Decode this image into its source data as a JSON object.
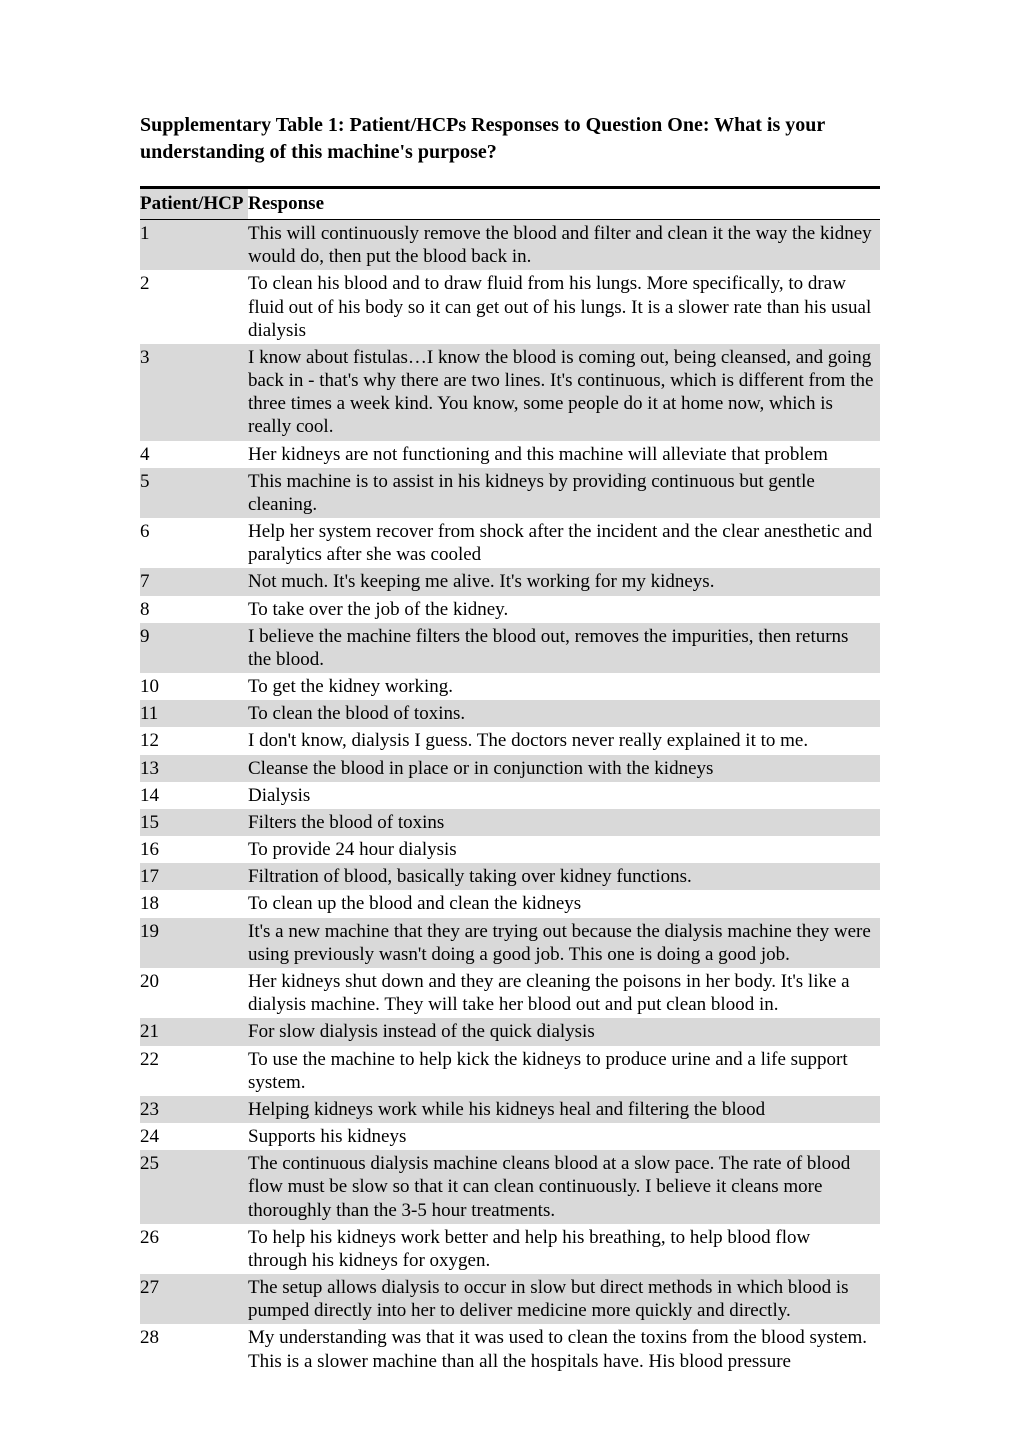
{
  "title": "Supplementary Table 1: Patient/HCPs Responses to Question One: What is your understanding of this machine's purpose?",
  "columns": {
    "id": "Patient/HCP",
    "response": "Response"
  },
  "rows": [
    {
      "id": "1",
      "response": "This will continuously remove the blood and filter and clean it the way the kidney would do, then put the blood back in."
    },
    {
      "id": "2",
      "response": "To clean his blood and to draw fluid from his lungs. More specifically, to draw fluid out of his body so it can get out of his lungs. It is a slower rate than his usual dialysis"
    },
    {
      "id": "3",
      "response": "I know about fistulas…I know the blood is coming out, being cleansed, and going back in - that's why there are two lines. It's continuous, which is different from the three times a week kind. You know, some people do it at home now, which is really cool."
    },
    {
      "id": "4",
      "response": "Her kidneys are not functioning and this machine will alleviate that problem"
    },
    {
      "id": "5",
      "response": "This machine is to assist in his kidneys by providing continuous but gentle cleaning."
    },
    {
      "id": "6",
      "response": "Help her system recover from shock after the incident and the clear anesthetic and paralytics after she was cooled"
    },
    {
      "id": "7",
      "response": "Not much. It's keeping me alive. It's working for my kidneys."
    },
    {
      "id": "8",
      "response": "To take over the job of the kidney."
    },
    {
      "id": "9",
      "response": "I believe the machine filters the blood out, removes the impurities, then returns the blood."
    },
    {
      "id": "10",
      "response": "To get the kidney working."
    },
    {
      "id": "11",
      "response": "To clean the blood of toxins."
    },
    {
      "id": "12",
      "response": "I don't know, dialysis I guess. The doctors never really explained it to me."
    },
    {
      "id": "13",
      "response": "Cleanse the blood in place or in conjunction with the kidneys"
    },
    {
      "id": "14",
      "response": "Dialysis"
    },
    {
      "id": "15",
      "response": "Filters the blood of toxins"
    },
    {
      "id": "16",
      "response": "To provide 24 hour dialysis"
    },
    {
      "id": "17",
      "response": "Filtration of blood, basically taking over kidney functions."
    },
    {
      "id": "18",
      "response": "To clean up the blood and clean the kidneys"
    },
    {
      "id": "19",
      "response": "It's a new machine that they are trying out because the dialysis machine they were using previously wasn't doing a good job. This one is doing a good job."
    },
    {
      "id": "20",
      "response": "Her kidneys shut down and they are cleaning the poisons in her body. It's like a dialysis machine. They will take her blood out and put clean blood in."
    },
    {
      "id": "21",
      "response": "For slow dialysis instead of the quick dialysis"
    },
    {
      "id": "22",
      "response": "To use the machine to help kick the kidneys to produce urine and a life support system."
    },
    {
      "id": "23",
      "response": "Helping kidneys work while his kidneys heal and filtering the blood"
    },
    {
      "id": "24",
      "response": "Supports his kidneys"
    },
    {
      "id": "25",
      "response": "The continuous dialysis machine cleans blood at a slow pace. The rate of blood flow must be slow so that it can clean continuously. I believe it cleans more thoroughly than the 3-5 hour treatments."
    },
    {
      "id": "26",
      "response": "To help his kidneys work better and help his breathing, to help blood flow through his kidneys for oxygen."
    },
    {
      "id": "27",
      "response": "The setup allows dialysis to occur in slow but direct methods in which blood is pumped directly into her to deliver medicine more quickly and directly."
    },
    {
      "id": "28",
      "response": "My understanding was that it was used to clean the toxins from the blood system. This is a slower machine than all the hospitals have. His blood pressure"
    }
  ],
  "colors": {
    "shade": "#d9d9d9",
    "background": "#ffffff",
    "text": "#000000"
  },
  "font": {
    "family": "Times New Roman",
    "title_size_pt": 15,
    "body_size_pt": 14.5
  }
}
